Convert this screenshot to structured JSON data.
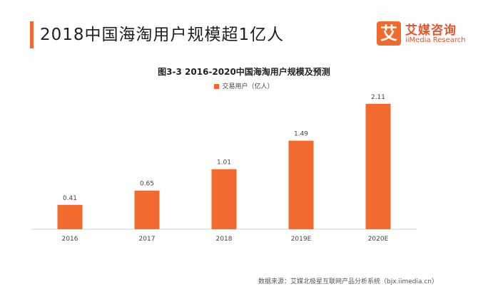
{
  "header": {
    "title": "2018中国海淘用户规模超1亿人"
  },
  "logo": {
    "mark": "艾",
    "name_cn": "艾媒咨询",
    "name_en": "iiMedia Research"
  },
  "chart_data": {
    "type": "bar",
    "title": "图3-3 2016-2020中国海淘用户规模及预测",
    "categories": [
      "2016",
      "2017",
      "2018",
      "2019E",
      "2020E"
    ],
    "series": [
      {
        "name": "交易用户（亿人）",
        "values": [
          0.41,
          0.65,
          1.01,
          1.49,
          2.11
        ],
        "color": "#f26a2e"
      }
    ],
    "data_labels": [
      "0.41",
      "0.65",
      "1.01",
      "1.49",
      "2.11"
    ],
    "ylim": [
      0,
      2.3
    ],
    "grid": false,
    "legend": "top-center"
  },
  "footer": {
    "source": "数据来源：艾媒北极星互联网产品分析系统（bjx.iimedia.cn）"
  }
}
